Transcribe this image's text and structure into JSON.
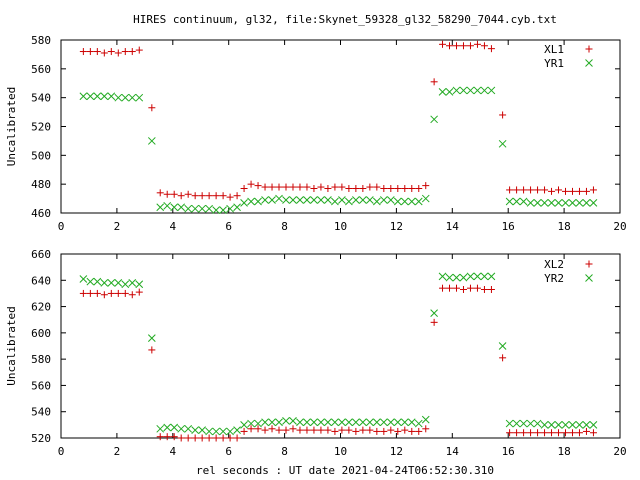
{
  "title": "HIRES continuum, gl32, file:Skynet_59328_gl32_58290_7044.cyb.txt",
  "xlabel": "rel seconds : UT date 2021-04-24T06:52:30.310",
  "colors": {
    "series_a": "#cc0000",
    "series_b": "#22aa22",
    "frame": "#000000"
  },
  "chart_data": [
    {
      "type": "scatter",
      "ylabel": "Uncalibrated",
      "xlim": [
        0,
        20
      ],
      "ylim": [
        460,
        580
      ],
      "xticks": [
        0,
        2,
        4,
        6,
        8,
        10,
        12,
        14,
        16,
        18,
        20
      ],
      "yticks": [
        460,
        480,
        500,
        520,
        540,
        560,
        580
      ],
      "grid": false,
      "legend_position": "top-right",
      "series": [
        {
          "name": "XL1",
          "marker": "plus",
          "color": "#cc0000",
          "x": [
            0.8,
            1.05,
            1.3,
            1.55,
            1.8,
            2.05,
            2.3,
            2.55,
            2.8,
            3.25,
            3.55,
            3.8,
            4.05,
            4.3,
            4.55,
            4.8,
            5.05,
            5.3,
            5.55,
            5.8,
            6.05,
            6.3,
            6.55,
            6.8,
            7.05,
            7.3,
            7.55,
            7.8,
            8.05,
            8.3,
            8.55,
            8.8,
            9.05,
            9.3,
            9.55,
            9.8,
            10.05,
            10.3,
            10.55,
            10.8,
            11.05,
            11.3,
            11.55,
            11.8,
            12.05,
            12.3,
            12.55,
            12.8,
            13.05,
            13.35,
            13.65,
            13.9,
            14.15,
            14.4,
            14.65,
            14.9,
            15.15,
            15.4,
            15.8,
            16.05,
            16.3,
            16.55,
            16.8,
            17.05,
            17.3,
            17.55,
            17.8,
            18.05,
            18.3,
            18.55,
            18.8,
            19.05
          ],
          "y": [
            572,
            572,
            572,
            571,
            572,
            571,
            572,
            572,
            573,
            533,
            474,
            473,
            473,
            472,
            473,
            472,
            472,
            472,
            472,
            472,
            471,
            472,
            477,
            480,
            479,
            478,
            478,
            478,
            478,
            478,
            478,
            478,
            477,
            478,
            477,
            478,
            478,
            477,
            477,
            477,
            478,
            478,
            477,
            477,
            477,
            477,
            477,
            477,
            479,
            551,
            577,
            576,
            576,
            576,
            576,
            577,
            576,
            574,
            528,
            476,
            476,
            476,
            476,
            476,
            476,
            475,
            476,
            475,
            475,
            475,
            475,
            476
          ]
        },
        {
          "name": "YR1",
          "marker": "cross",
          "color": "#22aa22",
          "x": [
            0.8,
            1.05,
            1.3,
            1.55,
            1.8,
            2.05,
            2.3,
            2.55,
            2.8,
            3.25,
            3.55,
            3.8,
            4.05,
            4.3,
            4.55,
            4.8,
            5.05,
            5.3,
            5.55,
            5.8,
            6.05,
            6.3,
            6.55,
            6.8,
            7.05,
            7.3,
            7.55,
            7.8,
            8.05,
            8.3,
            8.55,
            8.8,
            9.05,
            9.3,
            9.55,
            9.8,
            10.05,
            10.3,
            10.55,
            10.8,
            11.05,
            11.3,
            11.55,
            11.8,
            12.05,
            12.3,
            12.55,
            12.8,
            13.05,
            13.35,
            13.65,
            13.9,
            14.15,
            14.4,
            14.65,
            14.9,
            15.15,
            15.4,
            15.8,
            16.05,
            16.3,
            16.55,
            16.8,
            17.05,
            17.3,
            17.55,
            17.8,
            18.05,
            18.3,
            18.55,
            18.8,
            19.05
          ],
          "y": [
            541,
            541,
            541,
            541,
            541,
            540,
            540,
            540,
            540,
            510,
            464,
            465,
            464,
            464,
            463,
            463,
            463,
            463,
            462,
            462,
            463,
            464,
            467,
            468,
            468,
            469,
            469,
            470,
            469,
            469,
            469,
            469,
            469,
            469,
            469,
            468,
            469,
            468,
            469,
            469,
            469,
            468,
            469,
            469,
            468,
            468,
            468,
            468,
            470,
            525,
            544,
            544,
            545,
            545,
            545,
            545,
            545,
            545,
            508,
            468,
            468,
            468,
            467,
            467,
            467,
            467,
            467,
            467,
            467,
            467,
            467,
            467
          ]
        }
      ]
    },
    {
      "type": "scatter",
      "ylabel": "Uncalibrated",
      "xlim": [
        0,
        20
      ],
      "ylim": [
        520,
        660
      ],
      "xticks": [
        0,
        2,
        4,
        6,
        8,
        10,
        12,
        14,
        16,
        18,
        20
      ],
      "yticks": [
        520,
        540,
        560,
        580,
        600,
        620,
        640,
        660
      ],
      "grid": false,
      "legend_position": "top-right",
      "series": [
        {
          "name": "XL2",
          "marker": "plus",
          "color": "#cc0000",
          "x": [
            0.8,
            1.05,
            1.3,
            1.55,
            1.8,
            2.05,
            2.3,
            2.55,
            2.8,
            3.25,
            3.55,
            3.8,
            4.05,
            4.3,
            4.55,
            4.8,
            5.05,
            5.3,
            5.55,
            5.8,
            6.05,
            6.3,
            6.55,
            6.8,
            7.05,
            7.3,
            7.55,
            7.8,
            8.05,
            8.3,
            8.55,
            8.8,
            9.05,
            9.3,
            9.55,
            9.8,
            10.05,
            10.3,
            10.55,
            10.8,
            11.05,
            11.3,
            11.55,
            11.8,
            12.05,
            12.3,
            12.55,
            12.8,
            13.05,
            13.35,
            13.65,
            13.9,
            14.15,
            14.4,
            14.65,
            14.9,
            15.15,
            15.4,
            15.8,
            16.05,
            16.3,
            16.55,
            16.8,
            17.05,
            17.3,
            17.55,
            17.8,
            18.05,
            18.3,
            18.55,
            18.8,
            19.05
          ],
          "y": [
            630,
            630,
            630,
            629,
            630,
            630,
            630,
            629,
            631,
            587,
            521,
            521,
            521,
            520,
            520,
            520,
            520,
            520,
            520,
            520,
            520,
            520,
            525,
            527,
            527,
            526,
            527,
            526,
            526,
            527,
            526,
            526,
            526,
            526,
            526,
            525,
            526,
            526,
            525,
            526,
            526,
            525,
            525,
            526,
            525,
            526,
            525,
            525,
            527,
            608,
            634,
            634,
            634,
            633,
            634,
            634,
            633,
            633,
            581,
            524,
            524,
            524,
            524,
            524,
            524,
            524,
            524,
            524,
            524,
            524,
            525,
            524
          ]
        },
        {
          "name": "YR2",
          "marker": "cross",
          "color": "#22aa22",
          "x": [
            0.8,
            1.05,
            1.3,
            1.55,
            1.8,
            2.05,
            2.3,
            2.55,
            2.8,
            3.25,
            3.55,
            3.8,
            4.05,
            4.3,
            4.55,
            4.8,
            5.05,
            5.3,
            5.55,
            5.8,
            6.05,
            6.3,
            6.55,
            6.8,
            7.05,
            7.3,
            7.55,
            7.8,
            8.05,
            8.3,
            8.55,
            8.8,
            9.05,
            9.3,
            9.55,
            9.8,
            10.05,
            10.3,
            10.55,
            10.8,
            11.05,
            11.3,
            11.55,
            11.8,
            12.05,
            12.3,
            12.55,
            12.8,
            13.05,
            13.35,
            13.65,
            13.9,
            14.15,
            14.4,
            14.65,
            14.9,
            15.15,
            15.4,
            15.8,
            16.05,
            16.3,
            16.55,
            16.8,
            17.05,
            17.3,
            17.55,
            17.8,
            18.05,
            18.3,
            18.55,
            18.8,
            19.05
          ],
          "y": [
            641,
            639,
            639,
            638,
            638,
            638,
            637,
            638,
            637,
            596,
            527,
            528,
            528,
            527,
            527,
            526,
            526,
            525,
            525,
            525,
            525,
            526,
            530,
            531,
            531,
            532,
            532,
            532,
            533,
            533,
            532,
            532,
            532,
            532,
            532,
            532,
            532,
            532,
            532,
            532,
            532,
            532,
            532,
            532,
            532,
            532,
            532,
            531,
            534,
            615,
            643,
            642,
            642,
            642,
            643,
            643,
            643,
            643,
            590,
            531,
            531,
            531,
            531,
            531,
            530,
            530,
            530,
            530,
            530,
            530,
            530,
            530
          ]
        }
      ]
    }
  ]
}
